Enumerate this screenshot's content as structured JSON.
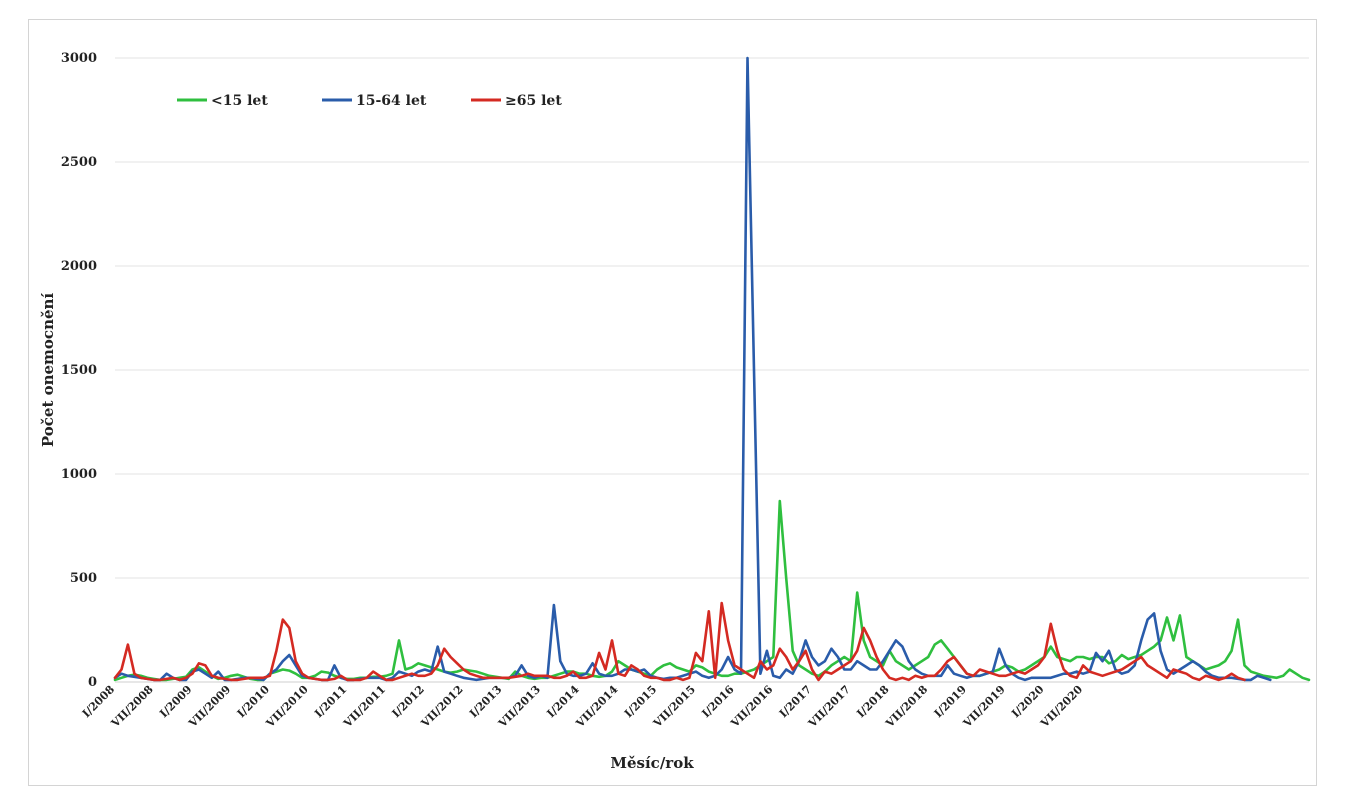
{
  "chart_data": {
    "type": "line",
    "title": "",
    "xlabel": "Měsíc/rok",
    "ylabel": "Počet onemocnění",
    "ylim": [
      0,
      3000
    ],
    "yticks": [
      "0",
      "500",
      "1000",
      "1500",
      "2000",
      "2500",
      "3000"
    ],
    "grid": "horizontal",
    "legend_position": "top-left",
    "x_tick_labels": [
      "I/2008",
      "VII/2008",
      "I/2009",
      "VII/2009",
      "I/2010",
      "VII/2010",
      "I/2011",
      "VII/2011",
      "I/2012",
      "VII/2012",
      "I/2013",
      "VII/2013",
      "I/2014",
      "VII/2014",
      "I/2015",
      "VII/2015",
      "I/2016",
      "VII/2016",
      "I/2017",
      "VII/2017",
      "I/2018",
      "VII/2018",
      "I/2019",
      "VII/2019",
      "I/2020",
      "VII/2020"
    ],
    "series": [
      {
        "name": "<15 let",
        "color": "#2fbf3f",
        "values": [
          10,
          20,
          30,
          35,
          30,
          20,
          15,
          10,
          10,
          15,
          20,
          25,
          60,
          70,
          50,
          30,
          15,
          20,
          30,
          35,
          25,
          15,
          10,
          10,
          40,
          50,
          60,
          55,
          40,
          20,
          20,
          30,
          50,
          45,
          30,
          20,
          15,
          15,
          20,
          20,
          25,
          25,
          30,
          40,
          200,
          60,
          70,
          90,
          80,
          70,
          60,
          50,
          45,
          50,
          60,
          55,
          50,
          40,
          30,
          25,
          20,
          15,
          50,
          30,
          20,
          15,
          20,
          20,
          30,
          40,
          50,
          50,
          40,
          40,
          30,
          25,
          30,
          50,
          100,
          80,
          60,
          50,
          40,
          30,
          60,
          80,
          90,
          70,
          60,
          50,
          80,
          70,
          50,
          40,
          30,
          30,
          40,
          40,
          50,
          60,
          80,
          100,
          120,
          870,
          500,
          150,
          80,
          60,
          40,
          30,
          50,
          80,
          100,
          120,
          100,
          430,
          200,
          120,
          100,
          80,
          150,
          100,
          80,
          60,
          80,
          100,
          120,
          180,
          200,
          160,
          120,
          80,
          40,
          30,
          30,
          40,
          50,
          60,
          80,
          70,
          50,
          60,
          80,
          100,
          120,
          170,
          120,
          110,
          100,
          120,
          120,
          110,
          120,
          120,
          90,
          100,
          130,
          110,
          120,
          130,
          150,
          170,
          200,
          310,
          200,
          320,
          120,
          100,
          80,
          60,
          70,
          80,
          100,
          150,
          300,
          80,
          50,
          40,
          30,
          25,
          20,
          30,
          60,
          40,
          20,
          10
        ]
      },
      {
        "name": "15-64 let",
        "color": "#2a5caa",
        "values": [
          20,
          40,
          30,
          25,
          20,
          15,
          10,
          10,
          40,
          20,
          10,
          10,
          50,
          60,
          40,
          20,
          50,
          10,
          10,
          15,
          20,
          20,
          15,
          10,
          40,
          60,
          100,
          130,
          80,
          30,
          20,
          15,
          10,
          10,
          80,
          20,
          10,
          10,
          15,
          20,
          20,
          20,
          10,
          20,
          50,
          40,
          30,
          50,
          60,
          50,
          170,
          50,
          40,
          30,
          20,
          15,
          10,
          15,
          20,
          20,
          20,
          20,
          30,
          80,
          30,
          20,
          30,
          20,
          370,
          100,
          40,
          30,
          30,
          40,
          90,
          40,
          30,
          30,
          40,
          60,
          60,
          50,
          60,
          30,
          20,
          15,
          20,
          20,
          30,
          40,
          50,
          30,
          20,
          30,
          60,
          120,
          60,
          40,
          3000,
          1500,
          40,
          150,
          30,
          20,
          60,
          40,
          100,
          200,
          120,
          80,
          100,
          160,
          120,
          60,
          60,
          100,
          80,
          60,
          60,
          100,
          150,
          200,
          170,
          100,
          60,
          40,
          30,
          30,
          30,
          80,
          40,
          30,
          20,
          30,
          30,
          40,
          50,
          160,
          80,
          40,
          20,
          10,
          20,
          20,
          20,
          20,
          30,
          40,
          40,
          50,
          40,
          50,
          140,
          100,
          150,
          60,
          40,
          50,
          80,
          200,
          300,
          330,
          150,
          60,
          40,
          60,
          80,
          100,
          80,
          50,
          30,
          20,
          20,
          20,
          15,
          10,
          10,
          30,
          20,
          10
        ]
      },
      {
        "name": "≥65 let",
        "color": "#d42a22",
        "values": [
          20,
          60,
          180,
          40,
          20,
          15,
          10,
          10,
          15,
          20,
          10,
          20,
          40,
          90,
          80,
          30,
          20,
          15,
          10,
          10,
          15,
          20,
          20,
          20,
          30,
          150,
          300,
          260,
          100,
          40,
          20,
          15,
          10,
          10,
          15,
          30,
          10,
          10,
          10,
          20,
          50,
          30,
          10,
          10,
          20,
          30,
          40,
          30,
          30,
          40,
          80,
          160,
          120,
          90,
          60,
          40,
          30,
          20,
          20,
          20,
          20,
          20,
          25,
          30,
          40,
          30,
          30,
          30,
          20,
          20,
          30,
          50,
          20,
          20,
          30,
          140,
          60,
          200,
          40,
          30,
          80,
          60,
          30,
          20,
          20,
          10,
          10,
          20,
          10,
          20,
          140,
          100,
          340,
          20,
          380,
          200,
          80,
          60,
          40,
          20,
          100,
          60,
          80,
          160,
          120,
          60,
          100,
          150,
          60,
          10,
          50,
          40,
          60,
          80,
          100,
          150,
          260,
          200,
          120,
          60,
          20,
          10,
          20,
          10,
          30,
          20,
          30,
          30,
          60,
          100,
          120,
          80,
          40,
          30,
          60,
          50,
          40,
          30,
          30,
          40,
          50,
          40,
          60,
          80,
          120,
          280,
          150,
          60,
          30,
          20,
          80,
          50,
          40,
          30,
          40,
          50,
          60,
          80,
          100,
          120,
          80,
          60,
          40,
          20,
          60,
          50,
          40,
          20,
          10,
          30,
          20,
          10,
          20,
          40,
          20,
          10
        ]
      }
    ]
  }
}
